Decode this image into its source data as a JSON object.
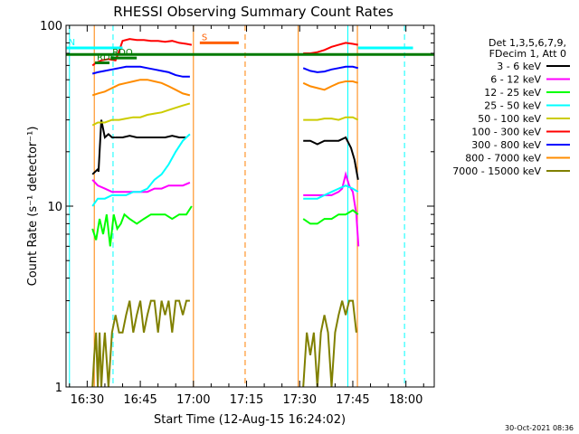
{
  "title": "RHESSI Observing Summary Count Rates",
  "footer_timestamp": "30-Oct-2021 08:36",
  "chart_data": {
    "type": "line",
    "title": "RHESSI Observing Summary Count Rates",
    "xlabel": "Start Time (12-Aug-15 16:24:02)",
    "ylabel": "Count Rate (s⁻¹ detector⁻¹)",
    "y_scale": "log",
    "ylim": [
      1,
      100
    ],
    "xlim_minutes_of_day": [
      984.03,
      1088.0
    ],
    "x_ticks": [
      {
        "label": "16:30",
        "t": 990
      },
      {
        "label": "16:45",
        "t": 1005
      },
      {
        "label": "17:00",
        "t": 1020
      },
      {
        "label": "17:15",
        "t": 1035
      },
      {
        "label": "17:30",
        "t": 1050
      },
      {
        "label": "17:45",
        "t": 1065
      },
      {
        "label": "18:00",
        "t": 1080
      }
    ],
    "y_ticks": [
      {
        "label": "1",
        "value": 1
      },
      {
        "label": "10",
        "value": 10
      },
      {
        "label": "100",
        "value": 100
      }
    ],
    "legend": {
      "placement": "right",
      "header": [
        "Det 1,3,5,6,7,9,",
        "FDecim 1, Att 0"
      ]
    },
    "series": [
      {
        "name": "3 - 6 keV",
        "color": "#000000",
        "segments": [
          {
            "t": [
              991.5,
              993.0,
              993.2,
              994.0,
              995.0,
              996.0,
              997.0,
              998.0
            ],
            "v": [
              15,
              16,
              15.5,
              30,
              24,
              25,
              24,
              24
            ]
          },
          {
            "t": [
              998.0,
              1000,
              1002,
              1004,
              1006,
              1008,
              1010,
              1012,
              1014,
              1016,
              1018
            ],
            "v": [
              24,
              24,
              24.5,
              24,
              24,
              24,
              24,
              24,
              24.5,
              24,
              24
            ]
          },
          {
            "t": [
              1051,
              1053,
              1055,
              1057,
              1059,
              1061,
              1063,
              1064.5,
              1065.5,
              1066.5
            ],
            "v": [
              23,
              23,
              22,
              23,
              23,
              23,
              24,
              21,
              18,
              14
            ]
          }
        ]
      },
      {
        "name": "6 - 12 keV",
        "color": "#ff00ff",
        "segments": [
          {
            "t": [
              991.5,
              993.0,
              995.0,
              997.0,
              999.0,
              1001,
              1003,
              1005,
              1007,
              1009,
              1011,
              1013,
              1015,
              1017,
              1019
            ],
            "v": [
              14,
              13,
              12.5,
              12,
              12,
              12,
              12,
              12,
              12,
              12.5,
              12.5,
              13,
              13,
              13,
              13.5
            ]
          },
          {
            "t": [
              1051,
              1053,
              1055,
              1057,
              1059,
              1061,
              1062,
              1063,
              1064,
              1065,
              1066,
              1066.6
            ],
            "v": [
              11.5,
              11.5,
              11.5,
              11.5,
              11.5,
              12,
              12.5,
              15,
              13,
              12,
              9,
              6
            ]
          }
        ]
      },
      {
        "name": "12 - 25 keV",
        "color": "#00ff00",
        "segments": [
          {
            "t": [
              991.5,
              992.5,
              993.5,
              994.5,
              995.5,
              996.5,
              997.5,
              998.5,
              999.5,
              1000.5,
              1002,
              1004,
              1006,
              1008,
              1010,
              1012,
              1014,
              1016,
              1018,
              1019.5
            ],
            "v": [
              7.5,
              6.5,
              8.5,
              7,
              9,
              6,
              9,
              7.5,
              8,
              9,
              8.5,
              8,
              8.5,
              9,
              9,
              9,
              8.5,
              9,
              9,
              10
            ]
          },
          {
            "t": [
              1051,
              1053,
              1055,
              1057,
              1059,
              1061,
              1063,
              1065,
              1066.5
            ],
            "v": [
              8.5,
              8,
              8,
              8.5,
              8.5,
              9,
              9,
              9.5,
              9
            ]
          }
        ]
      },
      {
        "name": "25 - 50 keV",
        "color": "#00ffff",
        "segments": [
          {
            "t": [
              991.5,
              993,
              995,
              997,
              999,
              1001,
              1003,
              1005,
              1007,
              1009,
              1011,
              1013,
              1015,
              1017,
              1019
            ],
            "v": [
              10,
              11,
              11,
              11.5,
              11.5,
              11.5,
              12,
              12,
              12.5,
              14,
              15,
              17,
              20,
              23,
              25
            ]
          },
          {
            "t": [
              1051,
              1053,
              1055,
              1057,
              1059,
              1061,
              1063,
              1065,
              1066.5
            ],
            "v": [
              11,
              11,
              11,
              11.5,
              12,
              12.5,
              13,
              12.5,
              12
            ]
          }
        ]
      },
      {
        "name": "50 - 100 keV",
        "color": "#cccc00",
        "segments": [
          {
            "t": [
              991.5,
              993,
              995,
              997,
              999,
              1001,
              1003,
              1005,
              1007,
              1009,
              1011,
              1013,
              1015,
              1017,
              1019
            ],
            "v": [
              28,
              29,
              29,
              30,
              30,
              30.5,
              31,
              31,
              32,
              32.5,
              33,
              34,
              35,
              36,
              37
            ]
          },
          {
            "t": [
              1051,
              1053,
              1055,
              1057,
              1059,
              1061,
              1063,
              1065,
              1066.5
            ],
            "v": [
              30,
              30,
              30,
              30.5,
              30.5,
              30,
              31,
              31,
              30
            ]
          }
        ]
      },
      {
        "name": "100 - 300 keV",
        "color": "#ff0000",
        "segments": [
          {
            "t": [
              991.5,
              992.5,
              994,
              996,
              998,
              999,
              1000,
              1002,
              1004,
              1006,
              1008,
              1010,
              1012,
              1014,
              1016,
              1018,
              1019.5
            ],
            "v": [
              60,
              62,
              64,
              65,
              64,
              72,
              82,
              84,
              83,
              83,
              82,
              82,
              81,
              82,
              80,
              79,
              78
            ]
          },
          {
            "t": [
              1051,
              1053,
              1055,
              1057,
              1059,
              1061,
              1063,
              1065,
              1066.5
            ],
            "v": [
              70,
              70,
              71,
              73,
              76,
              78,
              80,
              79,
              78
            ]
          }
        ]
      },
      {
        "name": "300 - 800 keV",
        "color": "#0000ff",
        "segments": [
          {
            "t": [
              991.5,
              993,
              995,
              997,
              999,
              1001,
              1003,
              1005,
              1007,
              1009,
              1011,
              1013,
              1015,
              1017,
              1019
            ],
            "v": [
              54,
              55,
              56,
              57,
              58,
              59,
              59,
              59,
              58,
              57,
              56,
              55,
              53,
              52,
              52
            ]
          },
          {
            "t": [
              1051,
              1053,
              1055,
              1057,
              1059,
              1061,
              1063,
              1065,
              1066.5
            ],
            "v": [
              58,
              56,
              55,
              55.5,
              57,
              58,
              59,
              59,
              58
            ]
          }
        ]
      },
      {
        "name": "800 - 7000 keV",
        "color": "#ff8c00",
        "segments": [
          {
            "t": [
              991.5,
              993,
              995,
              997,
              999,
              1001,
              1003,
              1005,
              1007,
              1009,
              1011,
              1013,
              1015,
              1017,
              1019
            ],
            "v": [
              41,
              42,
              43,
              45,
              47,
              48,
              49,
              50,
              50,
              49,
              48,
              46,
              44,
              42,
              41
            ]
          },
          {
            "t": [
              1051,
              1053,
              1055,
              1057,
              1059,
              1061,
              1063,
              1065,
              1066.5
            ],
            "v": [
              48,
              46,
              45,
              44,
              46,
              48,
              49,
              49,
              48
            ]
          }
        ]
      },
      {
        "name": "7000 - 15000 keV",
        "color": "#808000",
        "segments": [
          {
            "t": [
              991.5,
              992,
              992.5,
              993,
              993.5,
              994,
              994.5,
              995,
              996,
              997,
              998,
              999,
              1000,
              1001,
              1002,
              1003,
              1004,
              1005,
              1006,
              1007,
              1008,
              1009,
              1010,
              1011,
              1012,
              1013,
              1014,
              1015,
              1016,
              1017,
              1018,
              1019
            ],
            "v": [
              1,
              1.5,
              2,
              1,
              2,
              1,
              1.5,
              2,
              1,
              2,
              2.5,
              2,
              2,
              2.5,
              3,
              2,
              2.5,
              3,
              2,
              2.5,
              3,
              3,
              2,
              3,
              2.5,
              3,
              2,
              3,
              3,
              2.5,
              3,
              3
            ]
          },
          {
            "t": [
              1051,
              1052,
              1053,
              1054,
              1055,
              1056,
              1057,
              1058,
              1059,
              1060,
              1061,
              1062,
              1063,
              1064,
              1065,
              1066
            ],
            "v": [
              1,
              2,
              1.5,
              2,
              1,
              2,
              2.5,
              2,
              1,
              2,
              2.5,
              3,
              2.5,
              3,
              3,
              2
            ]
          }
        ]
      }
    ],
    "flag_bars": [
      {
        "label": "N",
        "color": "#00ffff",
        "y_value": 75,
        "t": [
          984.2,
          1000.0
        ]
      },
      {
        "label": "S",
        "color": "#ff6000",
        "y_value": 80,
        "t": [
          1021.8,
          1032.8
        ]
      },
      {
        "label": "",
        "color": "#00ffff",
        "y_value": 75,
        "t": [
          1066.5,
          1082.0
        ]
      },
      {
        "label": "RDS",
        "color": "#007a00",
        "y_value": 62,
        "t": [
          992.2,
          996.3
        ]
      },
      {
        "label": "RDO",
        "color": "#007a00",
        "y_value": 66,
        "t": [
          996.6,
          1004.0
        ]
      },
      {
        "label": "",
        "color": "#007a00",
        "y_value": 69,
        "t": [
          984.03,
          1088.0
        ]
      }
    ],
    "vlines": [
      {
        "t": 992.0,
        "color": "#ff8000",
        "style": "solid"
      },
      {
        "t": 1020.0,
        "color": "#ff8000",
        "style": "solid"
      },
      {
        "t": 1034.6,
        "color": "#ff8000",
        "style": "dashed"
      },
      {
        "t": 1049.6,
        "color": "#ff8000",
        "style": "solid"
      },
      {
        "t": 1066.3,
        "color": "#ff8000",
        "style": "solid"
      },
      {
        "t": 985.0,
        "color": "#00ffff",
        "style": "solid"
      },
      {
        "t": 997.3,
        "color": "#00ffff",
        "style": "dashed"
      },
      {
        "t": 1063.6,
        "color": "#00ffff",
        "style": "solid"
      },
      {
        "t": 1079.6,
        "color": "#00ffff",
        "style": "dashed"
      }
    ]
  }
}
